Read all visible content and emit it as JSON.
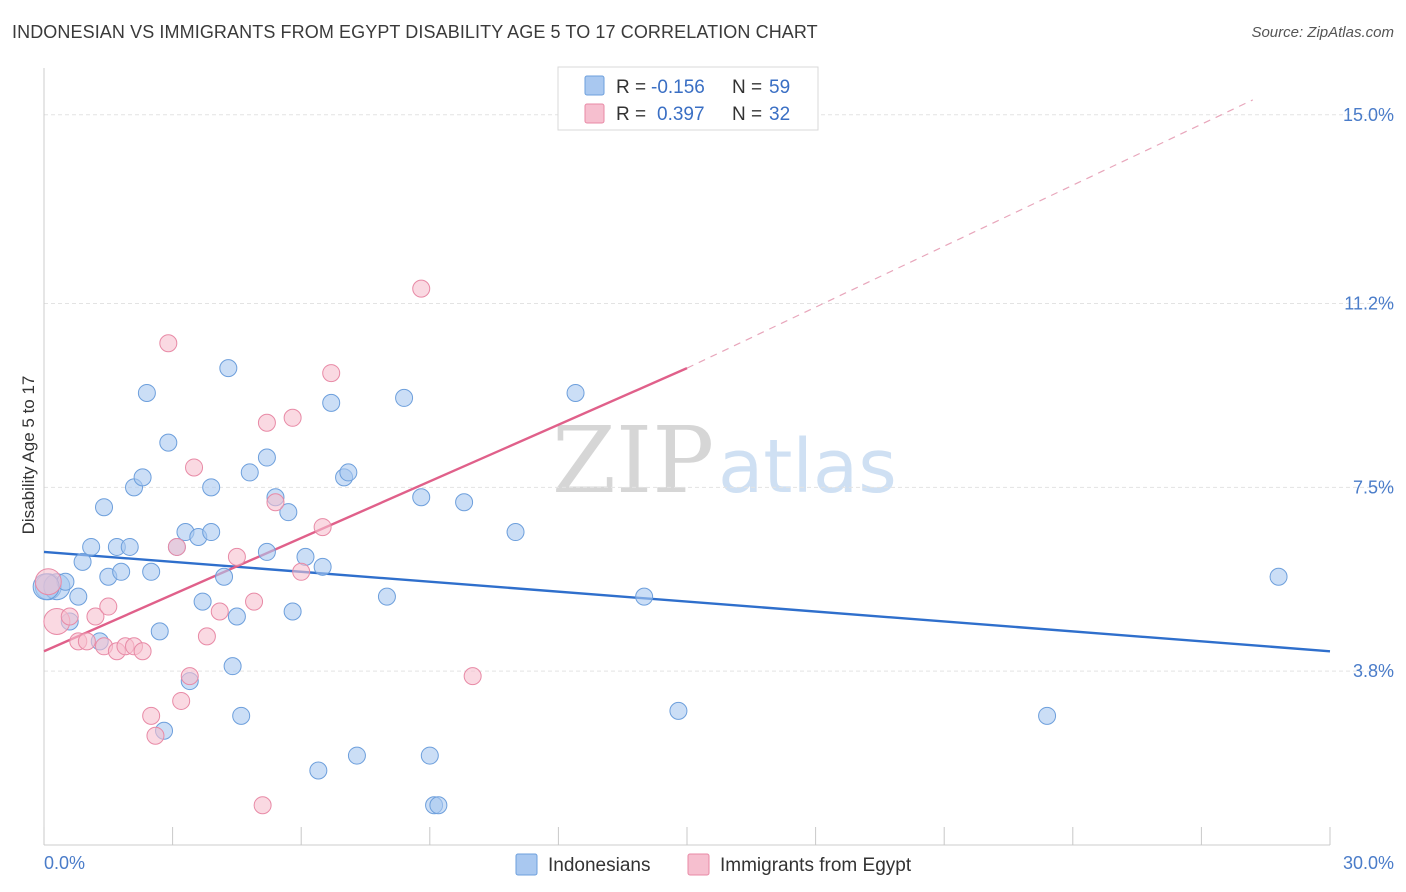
{
  "title": "INDONESIAN VS IMMIGRANTS FROM EGYPT DISABILITY AGE 5 TO 17 CORRELATION CHART",
  "source": "Source: ZipAtlas.com",
  "watermark": {
    "part1": "ZIP",
    "part2": "atlas"
  },
  "colors": {
    "blue_fill": "#a9c8f0",
    "blue_stroke": "#6d9fdc",
    "blue_line": "#2f6fcc",
    "pink_fill": "#f6bfcf",
    "pink_stroke": "#e88aa6",
    "pink_line": "#e0608a",
    "grid": "#e3e3e3",
    "tick_text": "#4a7cc9"
  },
  "legend": {
    "rows": [
      {
        "r_label": "R =",
        "r_value": "-0.156",
        "n_label": "N =",
        "n_value": "59"
      },
      {
        "r_label": "R =",
        "r_value": "0.397",
        "n_label": "N =",
        "n_value": "32"
      }
    ]
  },
  "bottom_legend": [
    "Indonesians",
    "Immigrants from Egypt"
  ],
  "chart_data": {
    "type": "scatter",
    "ylabel": "Disability Age 5 to 17",
    "xlim": [
      0,
      30
    ],
    "ylim": [
      0.3,
      15.7
    ],
    "x_tick_labels": [
      "0.0%",
      "30.0%"
    ],
    "y_ticks": [
      3.8,
      7.5,
      11.2,
      15.0
    ],
    "y_tick_labels": [
      "3.8%",
      "7.5%",
      "11.2%",
      "15.0%"
    ],
    "grid": true,
    "series": [
      {
        "name": "Indonesians",
        "points": [
          [
            0.1,
            5.5
          ],
          [
            0.3,
            5.5
          ],
          [
            0.5,
            5.6
          ],
          [
            0.6,
            4.8
          ],
          [
            0.8,
            5.3
          ],
          [
            0.9,
            6.0
          ],
          [
            1.1,
            6.3
          ],
          [
            1.3,
            4.4
          ],
          [
            1.4,
            7.1
          ],
          [
            1.5,
            5.7
          ],
          [
            1.8,
            5.8
          ],
          [
            1.7,
            6.3
          ],
          [
            2.0,
            6.3
          ],
          [
            2.1,
            7.5
          ],
          [
            2.3,
            7.7
          ],
          [
            2.4,
            9.4
          ],
          [
            2.5,
            5.8
          ],
          [
            2.7,
            4.6
          ],
          [
            2.8,
            2.6
          ],
          [
            2.9,
            8.4
          ],
          [
            3.1,
            6.3
          ],
          [
            3.3,
            6.6
          ],
          [
            3.4,
            3.6
          ],
          [
            3.6,
            6.5
          ],
          [
            3.7,
            5.2
          ],
          [
            3.9,
            6.6
          ],
          [
            3.9,
            7.5
          ],
          [
            4.2,
            5.7
          ],
          [
            4.3,
            9.9
          ],
          [
            4.4,
            3.9
          ],
          [
            4.5,
            4.9
          ],
          [
            4.6,
            2.9
          ],
          [
            4.8,
            7.8
          ],
          [
            5.2,
            8.1
          ],
          [
            5.2,
            6.2
          ],
          [
            5.4,
            7.3
          ],
          [
            5.7,
            7.0
          ],
          [
            5.8,
            5.0
          ],
          [
            6.1,
            6.1
          ],
          [
            6.4,
            1.8
          ],
          [
            6.5,
            5.9
          ],
          [
            6.7,
            9.2
          ],
          [
            7.0,
            7.7
          ],
          [
            7.1,
            7.8
          ],
          [
            7.3,
            2.1
          ],
          [
            8.0,
            5.3
          ],
          [
            8.4,
            9.3
          ],
          [
            8.8,
            7.3
          ],
          [
            9.0,
            2.1
          ],
          [
            9.1,
            1.1
          ],
          [
            9.2,
            1.1
          ],
          [
            9.8,
            7.2
          ],
          [
            11.0,
            6.6
          ],
          [
            12.4,
            9.4
          ],
          [
            14.0,
            5.3
          ],
          [
            14.8,
            3.0
          ],
          [
            23.4,
            2.9
          ],
          [
            28.8,
            5.7
          ],
          [
            0.05,
            5.5
          ]
        ],
        "trend": {
          "x": [
            0,
            30
          ],
          "y": [
            6.2,
            4.2
          ]
        }
      },
      {
        "name": "Immigrants from Egypt",
        "points": [
          [
            0.1,
            5.6
          ],
          [
            0.3,
            4.8
          ],
          [
            0.6,
            4.9
          ],
          [
            0.8,
            4.4
          ],
          [
            1.0,
            4.4
          ],
          [
            1.2,
            4.9
          ],
          [
            1.4,
            4.3
          ],
          [
            1.5,
            5.1
          ],
          [
            1.7,
            4.2
          ],
          [
            1.9,
            4.3
          ],
          [
            2.1,
            4.3
          ],
          [
            2.3,
            4.2
          ],
          [
            2.5,
            2.9
          ],
          [
            2.6,
            2.5
          ],
          [
            2.9,
            10.4
          ],
          [
            3.1,
            6.3
          ],
          [
            3.2,
            3.2
          ],
          [
            3.4,
            3.7
          ],
          [
            3.5,
            7.9
          ],
          [
            3.8,
            4.5
          ],
          [
            4.1,
            5.0
          ],
          [
            4.5,
            6.1
          ],
          [
            4.9,
            5.2
          ],
          [
            5.1,
            1.1
          ],
          [
            5.2,
            8.8
          ],
          [
            5.4,
            7.2
          ],
          [
            5.8,
            8.9
          ],
          [
            6.0,
            5.8
          ],
          [
            6.5,
            6.7
          ],
          [
            6.7,
            9.8
          ],
          [
            8.8,
            11.5
          ],
          [
            10.0,
            3.7
          ]
        ],
        "trend": {
          "x": [
            0,
            15
          ],
          "y": [
            4.2,
            9.9
          ]
        },
        "trend_dashed": {
          "x": [
            15,
            28.2
          ],
          "y": [
            9.9,
            15.3
          ]
        }
      }
    ]
  }
}
